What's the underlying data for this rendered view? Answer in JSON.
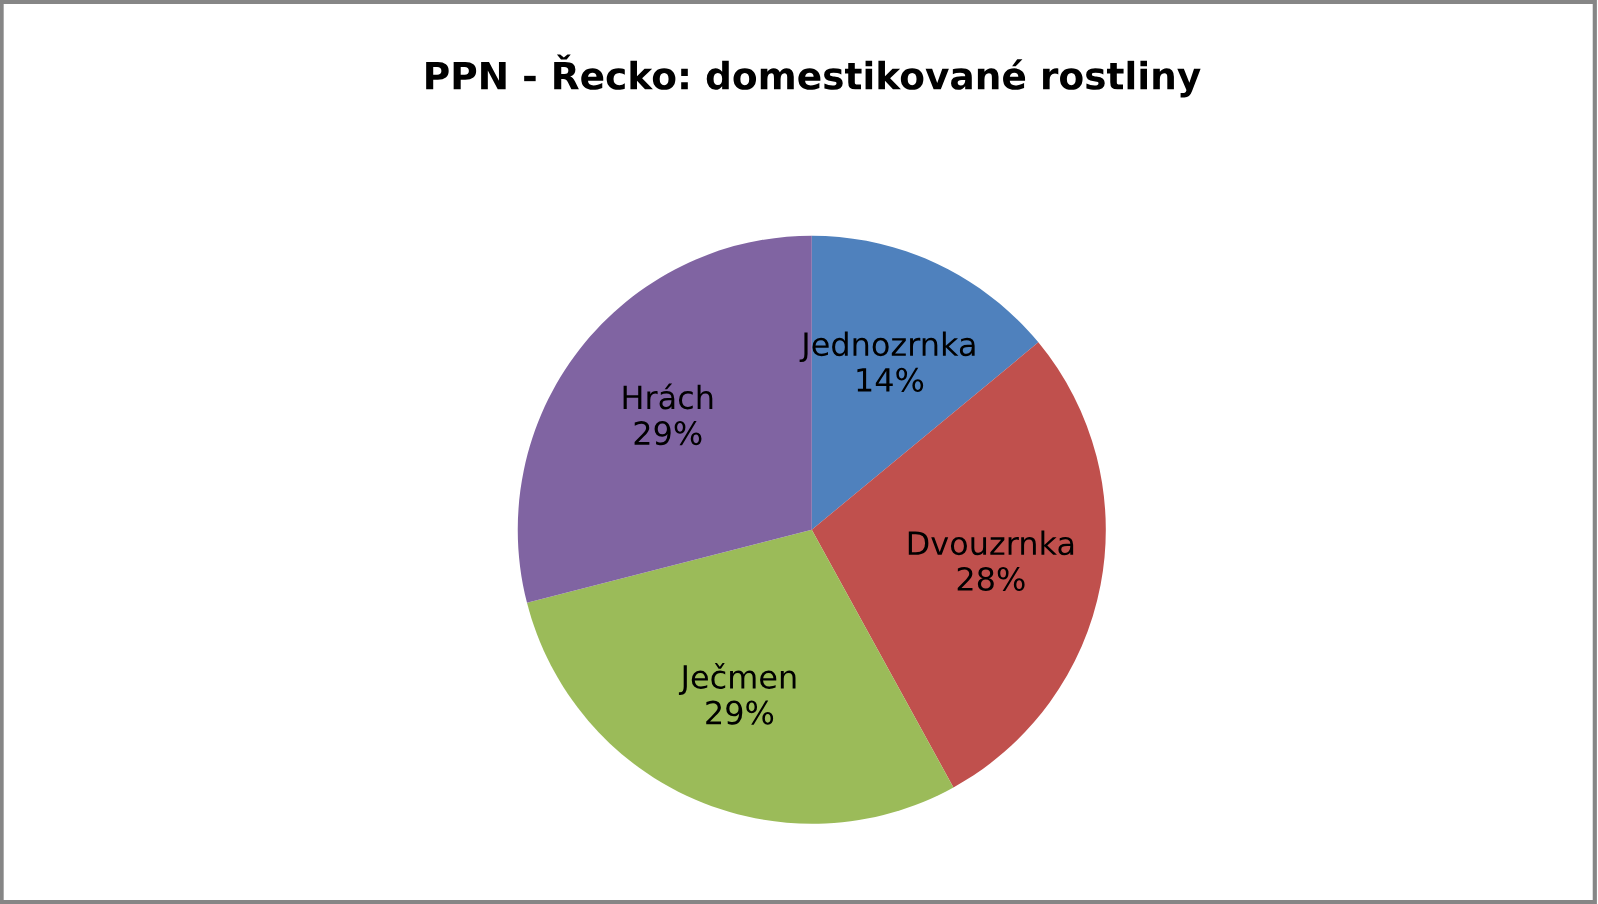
{
  "chart_data": {
    "type": "pie",
    "title": "PPN - Řecko: domestikované rostliny",
    "categories": [
      "Jednozrnka",
      "Dvouzrnka",
      "Ječmen",
      "Hrách"
    ],
    "values": [
      14,
      28,
      29,
      29
    ],
    "value_labels": [
      "14%",
      "28%",
      "29%",
      "29%"
    ],
    "colors": [
      "#4f81bd",
      "#c0504d",
      "#9bbb59",
      "#8064a2"
    ],
    "legend": false
  }
}
